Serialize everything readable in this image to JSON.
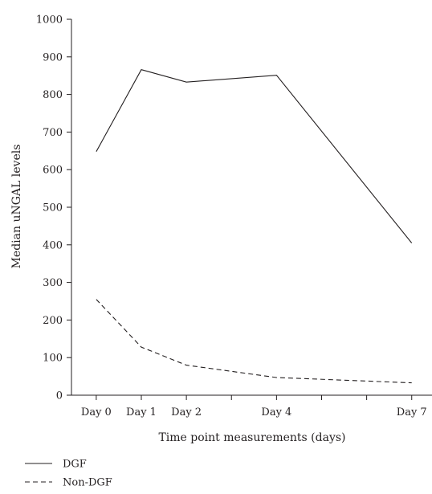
{
  "chart_data": {
    "type": "line",
    "title": "",
    "xlabel": "Time point measurements (days)",
    "ylabel": "Median uNGAL levels",
    "ylim": [
      0,
      1000
    ],
    "yticks": [
      "0",
      "100",
      "200",
      "300",
      "400",
      "500",
      "600",
      "700",
      "800",
      "900",
      "1000"
    ],
    "xlim": [
      -0.55,
      7.45
    ],
    "xtick_labels": [
      "Day 0",
      "Day 1",
      "Day 2",
      "Day 4",
      "Day 7"
    ],
    "xticks_minor": [
      0,
      1,
      2,
      3,
      4,
      5,
      6,
      7
    ],
    "grid": false,
    "legend_position": "bottom-left",
    "series": [
      {
        "name": "DGF",
        "line_style": "solid",
        "color": "#231f20",
        "points": [
          {
            "x": "Day 0",
            "y": 648
          },
          {
            "x": "Day 1",
            "y": 866
          },
          {
            "x": "Day 2",
            "y": 833
          },
          {
            "x": "Day 4",
            "y": 851
          },
          {
            "x": "Day 7",
            "y": 405
          }
        ]
      },
      {
        "name": "Non-DGF",
        "line_style": "dashed",
        "color": "#231f20",
        "points": [
          {
            "x": "Day 0",
            "y": 255
          },
          {
            "x": "Day 1",
            "y": 128
          },
          {
            "x": "Day 2",
            "y": 80
          },
          {
            "x": "Day 4",
            "y": 47
          },
          {
            "x": "Day 7",
            "y": 33
          }
        ]
      }
    ]
  }
}
